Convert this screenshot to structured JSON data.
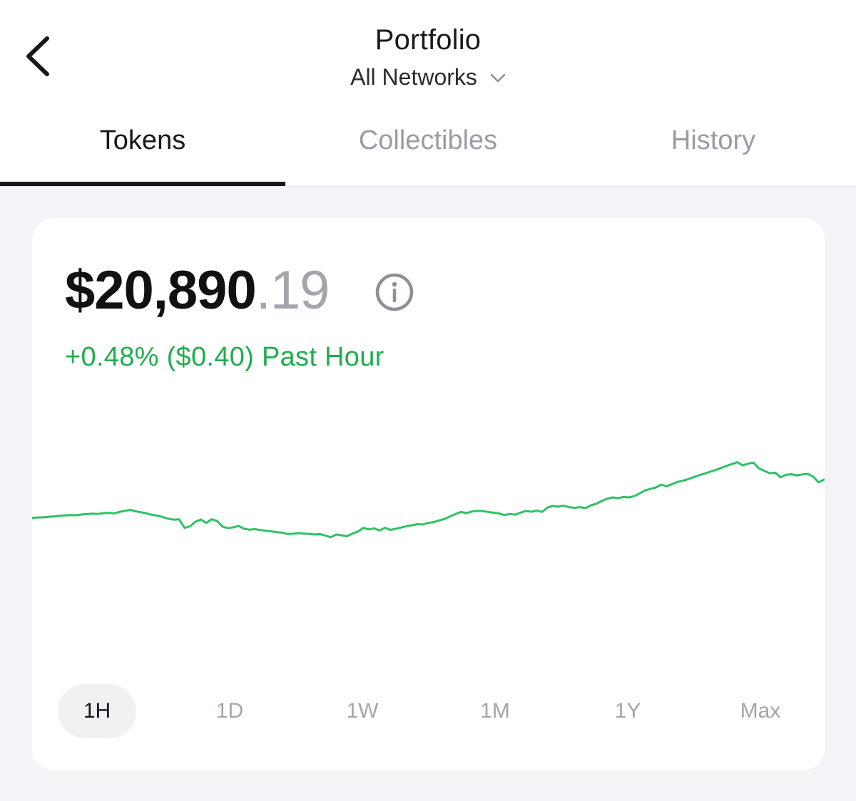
{
  "header": {
    "title": "Portfolio",
    "network": "All Networks"
  },
  "tabs": [
    {
      "label": "Tokens",
      "active": true
    },
    {
      "label": "Collectibles",
      "active": false
    },
    {
      "label": "History",
      "active": false
    }
  ],
  "balance": {
    "whole": "$20,890",
    "cents": ".19",
    "change": "+0.48% ($0.40) Past Hour"
  },
  "colors": {
    "positive": "#1fae4f",
    "text": "#111114",
    "muted": "#a3a5ad",
    "background": "#f4f4f8"
  },
  "chart_data": {
    "type": "line",
    "series": [
      {
        "values": [
          53.6,
          53.8,
          53.9,
          54.2,
          54.4,
          54.7,
          54.9,
          55.1,
          55.0,
          55.4,
          55.6,
          55.9,
          55.7,
          56.1,
          56.3,
          56.0,
          56.8,
          57.4,
          57.9,
          57.1,
          56.6,
          56.0,
          55.2,
          54.8,
          54.0,
          53.1,
          52.6,
          52.8,
          48.2,
          49.0,
          51.5,
          52.7,
          50.9,
          52.8,
          51.9,
          48.9,
          48.0,
          48.5,
          49.2,
          47.7,
          47.2,
          47.5,
          47.0,
          46.6,
          46.3,
          45.9,
          45.6,
          44.9,
          45.0,
          45.3,
          45.1,
          44.9,
          44.6,
          44.8,
          44.0,
          43.1,
          44.6,
          44.2,
          43.6,
          45.1,
          46.2,
          48.2,
          47.4,
          47.9,
          46.8,
          48.2,
          47.1,
          47.7,
          48.4,
          49.1,
          49.6,
          50.2,
          50.0,
          50.9,
          51.3,
          52.2,
          53.0,
          54.4,
          55.6,
          56.8,
          56.1,
          57.0,
          57.4,
          57.2,
          56.8,
          56.4,
          56.0,
          55.1,
          55.7,
          55.3,
          56.4,
          57.3,
          56.9,
          57.5,
          56.8,
          59.2,
          60.0,
          59.6,
          60.1,
          59.3,
          59.0,
          59.4,
          58.8,
          60.4,
          61.2,
          62.7,
          63.9,
          64.6,
          64.2,
          64.9,
          64.6,
          65.3,
          66.8,
          68.4,
          69.2,
          70.0,
          71.5,
          70.6,
          71.8,
          73.0,
          73.7,
          74.5,
          75.6,
          76.6,
          77.5,
          78.5,
          79.4,
          80.5,
          81.6,
          82.6,
          83.6,
          81.9,
          82.8,
          83.4,
          80.3,
          79.0,
          77.6,
          78.0,
          75.5,
          76.8,
          77.1,
          76.5,
          77.0,
          77.3,
          75.9,
          72.8,
          74.2
        ]
      }
    ],
    "ranges": [
      "1H",
      "1D",
      "1W",
      "1M",
      "1Y",
      "Max"
    ],
    "selected_range": "1H",
    "grid": false,
    "legend": "none"
  }
}
